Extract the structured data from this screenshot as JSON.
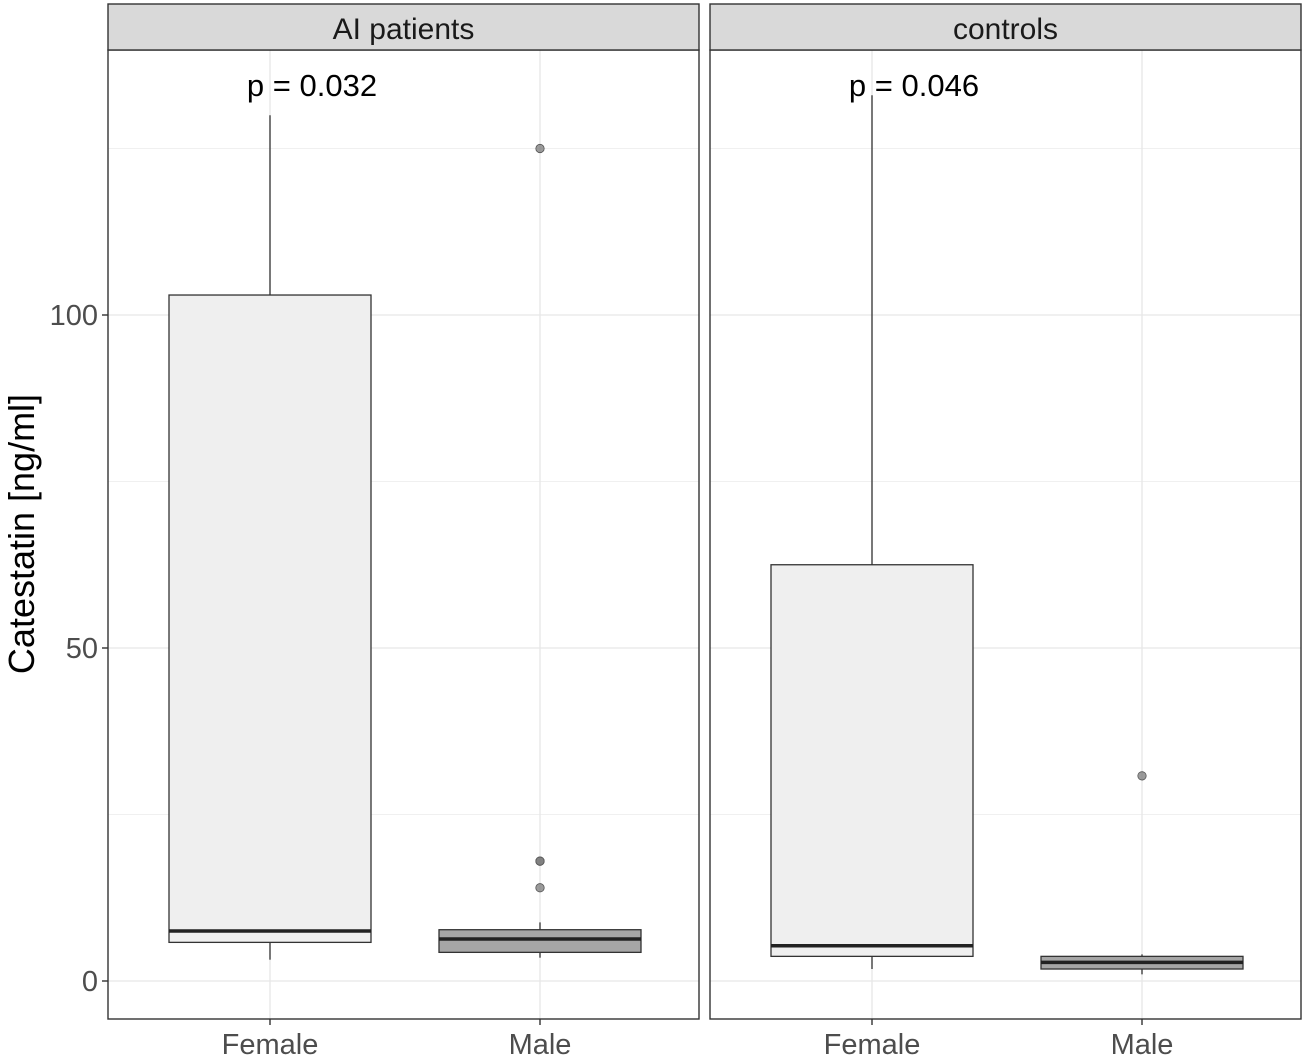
{
  "chart_data": {
    "type": "boxplot",
    "ylabel": "Catestatin [ng/ml]",
    "xlabel": "",
    "ylim": [
      -6,
      146
    ],
    "yticks": [
      0,
      50,
      100
    ],
    "grid": true,
    "categories": [
      "Female",
      "Male"
    ],
    "colors": {
      "Female": "#efefef",
      "Male": "#a6a6a6",
      "outlier": "#7a7a7a"
    },
    "panels": [
      {
        "title": "AI patients",
        "p_label": "p = 0.032",
        "boxes": [
          {
            "category": "Female",
            "whisker_low": 3.2,
            "q1": 5.8,
            "median": 7.5,
            "q3": 103.0,
            "whisker_high": 130.0,
            "outliers": []
          },
          {
            "category": "Male",
            "whisker_low": 3.5,
            "q1": 4.3,
            "median": 6.3,
            "q3": 7.7,
            "whisker_high": 8.8,
            "outliers": [
              125.0,
              18.0,
              18.0,
              14.0
            ]
          }
        ]
      },
      {
        "title": "controls",
        "p_label": "p = 0.046",
        "boxes": [
          {
            "category": "Female",
            "whisker_low": 1.8,
            "q1": 3.7,
            "median": 5.3,
            "q3": 62.5,
            "whisker_high": 133.0,
            "outliers": []
          },
          {
            "category": "Male",
            "whisker_low": 1.0,
            "q1": 1.8,
            "median": 2.8,
            "q3": 3.7,
            "whisker_high": 4.0,
            "outliers": [
              30.8
            ]
          }
        ]
      }
    ]
  }
}
